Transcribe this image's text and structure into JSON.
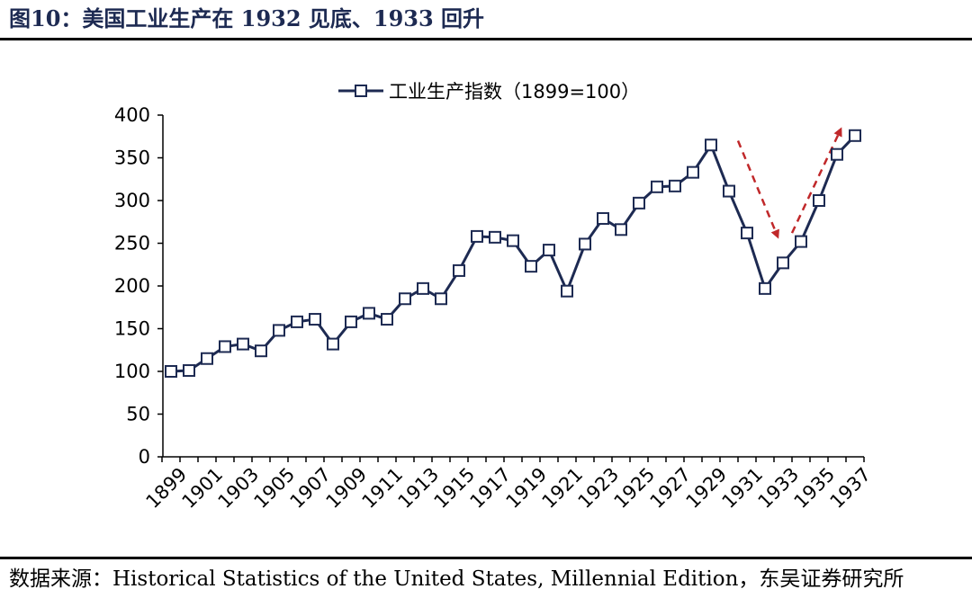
{
  "figure": {
    "title": "图10：美国工业生产在 1932 见底、1933 回升",
    "source": "数据来源：Historical Statistics of the United States, Millennial Edition，东吴证券研究所"
  },
  "colors": {
    "line": "#1d2a52",
    "marker_fill": "#ffffff",
    "annotation_arrow": "#c0282a",
    "axis": "#000000"
  },
  "chart_data": {
    "type": "line",
    "title": "",
    "xlabel": "",
    "ylabel": "",
    "ylim": [
      0,
      400
    ],
    "yticks": [
      0,
      50,
      100,
      150,
      200,
      250,
      300,
      350,
      400
    ],
    "x": [
      1899,
      1900,
      1901,
      1902,
      1903,
      1904,
      1905,
      1906,
      1907,
      1908,
      1909,
      1910,
      1911,
      1912,
      1913,
      1914,
      1915,
      1916,
      1917,
      1918,
      1919,
      1920,
      1921,
      1922,
      1923,
      1924,
      1925,
      1926,
      1927,
      1928,
      1929,
      1930,
      1931,
      1932,
      1933,
      1934,
      1935,
      1936,
      1937
    ],
    "xtick_labels": [
      "1899",
      "1901",
      "1903",
      "1905",
      "1907",
      "1909",
      "1911",
      "1913",
      "1915",
      "1917",
      "1919",
      "1921",
      "1923",
      "1925",
      "1927",
      "1929",
      "1931",
      "1933",
      "1935",
      "1937"
    ],
    "grid": false,
    "legend": "top-center",
    "series": [
      {
        "name": "工业生产指数（1899=100）",
        "marker": "square",
        "values": [
          100,
          101,
          115,
          129,
          132,
          124,
          148,
          158,
          161,
          132,
          158,
          168,
          161,
          185,
          197,
          185,
          218,
          258,
          257,
          253,
          223,
          242,
          194,
          249,
          279,
          266,
          297,
          316,
          317,
          333,
          365,
          311,
          262,
          197,
          227,
          252,
          300,
          354,
          376
        ]
      }
    ],
    "annotations": [
      {
        "type": "arrow",
        "style": "dashed",
        "from_x": 1930.5,
        "from_y": 370,
        "to_x": 1932.7,
        "to_y": 258
      },
      {
        "type": "arrow",
        "style": "dashed",
        "from_x": 1933.5,
        "from_y": 262,
        "to_x": 1936.2,
        "to_y": 383
      }
    ]
  }
}
